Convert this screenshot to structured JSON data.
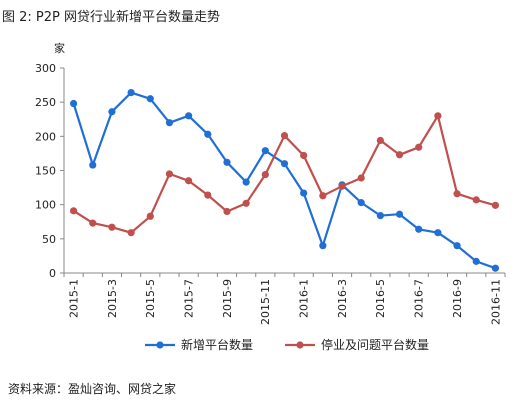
{
  "figure": {
    "title": "图 2: P2P 网贷行业新增平台数量走势",
    "source": "资料来源：盈灿咨询、网贷之家"
  },
  "chart_data": {
    "type": "line",
    "title": "图 2: P2P 网贷行业新增平台数量走势",
    "ylabel": "家",
    "xlabel": "",
    "ylim": [
      0,
      300
    ],
    "yticks": [
      0,
      50,
      100,
      150,
      200,
      250,
      300
    ],
    "grid": false,
    "legend_position": "bottom",
    "categories": [
      "2015-1",
      "2015-2",
      "2015-3",
      "2015-4",
      "2015-5",
      "2015-6",
      "2015-7",
      "2015-8",
      "2015-9",
      "2015-10",
      "2015-11",
      "2015-12",
      "2016-1",
      "2016-2",
      "2016-3",
      "2016-4",
      "2016-5",
      "2016-6",
      "2016-7",
      "2016-8",
      "2016-9",
      "2016-10",
      "2016-11"
    ],
    "tick_labels": [
      "2015-1",
      "2015-3",
      "2015-5",
      "2015-7",
      "2015-9",
      "2015-11",
      "2016-1",
      "2016-3",
      "2016-5",
      "2016-7",
      "2016-9",
      "2016-11"
    ],
    "series": [
      {
        "name": "新增平台数量",
        "color": "#1f6fd6",
        "values": [
          248,
          158,
          236,
          264,
          255,
          220,
          230,
          203,
          162,
          133,
          179,
          160,
          117,
          40,
          129,
          103,
          84,
          86,
          64,
          59,
          40,
          17,
          7
        ]
      },
      {
        "name": "停业及问题平台数量",
        "color": "#c0504d",
        "values": [
          91,
          73,
          67,
          59,
          83,
          145,
          135,
          114,
          90,
          102,
          144,
          201,
          172,
          113,
          127,
          139,
          194,
          173,
          184,
          230,
          116,
          107,
          99
        ]
      }
    ]
  }
}
